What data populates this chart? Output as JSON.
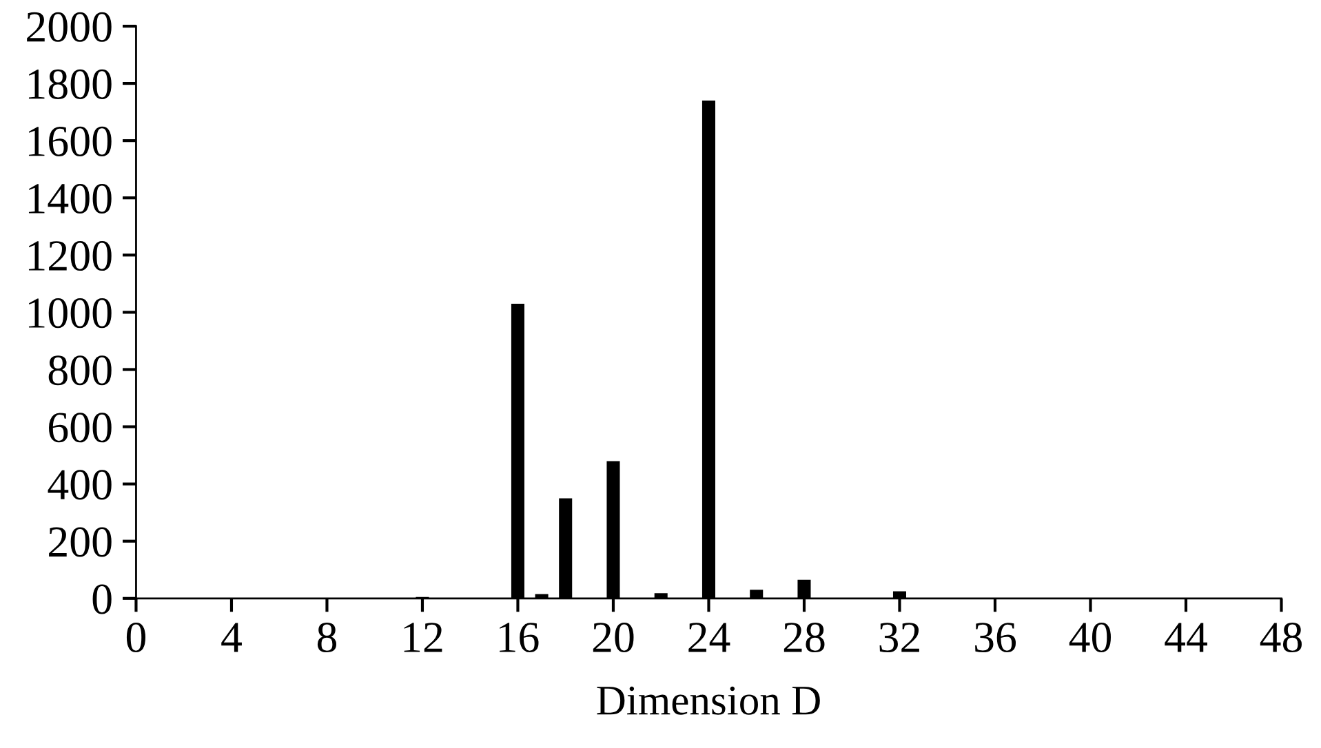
{
  "chart_data": {
    "type": "bar",
    "xlabel": "Dimension D",
    "x": [
      12,
      16,
      17,
      18,
      20,
      22,
      24,
      26,
      28,
      32
    ],
    "values": [
      5,
      1030,
      15,
      350,
      480,
      18,
      1740,
      30,
      65,
      25
    ],
    "color": "#000000",
    "xlim": [
      0,
      48
    ],
    "xticks": [
      0,
      4,
      8,
      12,
      16,
      20,
      24,
      28,
      32,
      36,
      40,
      44,
      48
    ],
    "ylim": [
      0,
      2000
    ],
    "yticks": [
      0,
      200,
      400,
      600,
      800,
      1000,
      1200,
      1400,
      1600,
      1800,
      2000
    ],
    "grid": false
  }
}
